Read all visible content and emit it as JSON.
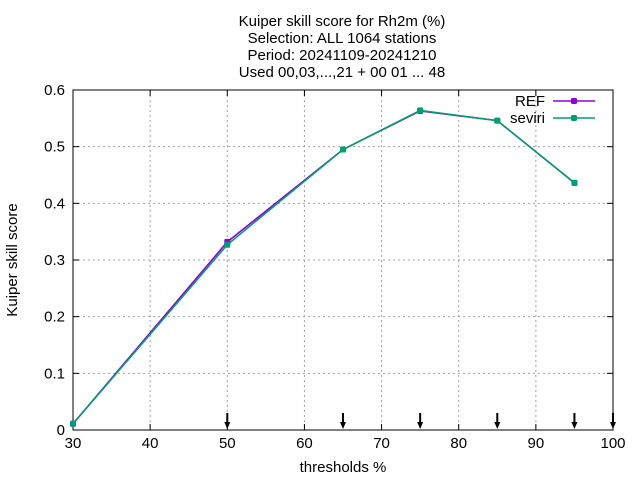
{
  "chart_data": {
    "type": "line",
    "title_lines": [
      "Kuiper skill score  for Rh2m (%)",
      "Selection: ALL   1064 stations",
      "Period: 20241109-20241210",
      "Used 00,03,...,21 + 00 01 ... 48"
    ],
    "xlabel": "thresholds %",
    "ylabel": "Kuiper skill score",
    "xlim": [
      30,
      100
    ],
    "ylim": [
      0,
      0.6
    ],
    "xticks": [
      30,
      40,
      50,
      60,
      70,
      80,
      90,
      100
    ],
    "yticks": [
      "0",
      "0.1",
      "0.2",
      "0.3",
      "0.4",
      "0.5",
      "0.6"
    ],
    "grid": true,
    "legend_position": "top-right",
    "threshold_markers": [
      50,
      65,
      75,
      85,
      95,
      100
    ],
    "series": [
      {
        "name": "REF",
        "color": "#9400d3",
        "x": [
          30,
          50,
          65,
          75,
          85,
          95
        ],
        "y": [
          0.011,
          0.332,
          0.495,
          0.563,
          0.546,
          0.436
        ]
      },
      {
        "name": "seviri",
        "color": "#009e73",
        "x": [
          30,
          50,
          65,
          75,
          85,
          95
        ],
        "y": [
          0.011,
          0.327,
          0.495,
          0.564,
          0.546,
          0.436
        ]
      }
    ]
  }
}
